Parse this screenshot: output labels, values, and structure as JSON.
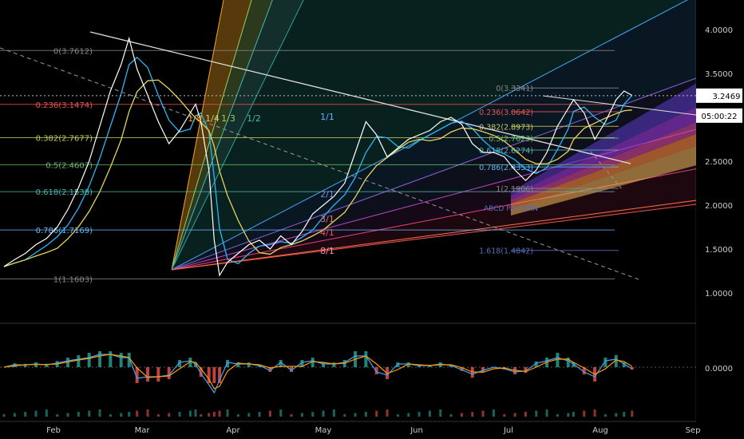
{
  "chart_data": {
    "type": "line",
    "x_axis": {
      "labels": [
        "Feb",
        "Mar",
        "Apr",
        "May",
        "Jun",
        "Jul",
        "Aug",
        "Sep"
      ],
      "range_days": [
        0,
        240
      ]
    },
    "y_axis": {
      "ticks": [
        "4.0000",
        "3.5000",
        "3.0000",
        "2.5000",
        "2.0000",
        "1.5000",
        "1.0000"
      ],
      "range": [
        0.7,
        4.35
      ]
    },
    "price_label": "3.2469",
    "countdown_label": "05:00:22",
    "macd_axis_label": "0.0000",
    "fib_left": [
      {
        "label": "0(3.7612)",
        "value": 3.7612,
        "color": "#888888"
      },
      {
        "label": "0.236(3.1474)",
        "value": 3.1474,
        "color": "#ef5350"
      },
      {
        "label": "0.382(2.7677)",
        "value": 2.7677,
        "color": "#c7c95d"
      },
      {
        "label": "0.5(2.4607)",
        "value": 2.4607,
        "color": "#66bb6a"
      },
      {
        "label": "0.618(2.1538)",
        "value": 2.1538,
        "color": "#4db6ac"
      },
      {
        "label": "0.786(1.7169)",
        "value": 1.7169,
        "color": "#64b5f6"
      },
      {
        "label": "1(1.1603)",
        "value": 1.1603,
        "color": "#888888"
      }
    ],
    "fib_right": [
      {
        "label": "0(3.3341)",
        "value": 3.3341,
        "color": "#888888"
      },
      {
        "label": "0.236(3.0642)",
        "value": 3.0642,
        "color": "#ef5350"
      },
      {
        "label": "0.382(2.8973)",
        "value": 2.8973,
        "color": "#c7c95d"
      },
      {
        "label": "0.5(2.7623)",
        "value": 2.7623,
        "color": "#66bb6a"
      },
      {
        "label": "0.618(2.6274)",
        "value": 2.6274,
        "color": "#4db6ac"
      },
      {
        "label": "0.786(2.4353)",
        "value": 2.4353,
        "color": "#64b5f6"
      },
      {
        "label": "1(2.1906)",
        "value": 2.1906,
        "color": "#888888"
      },
      {
        "label": "1.618(1.4842)",
        "value": 1.4842,
        "color": "#5c6bc0"
      }
    ],
    "gann_labels": [
      "1/8",
      "1/4",
      "1/3",
      "1/2",
      "1/1",
      "2/1",
      "3/1",
      "4/1",
      "8/1"
    ],
    "annotation": "ABCD PATTERN",
    "price_series": [
      [
        0,
        1.3
      ],
      [
        4,
        1.38
      ],
      [
        8,
        1.45
      ],
      [
        12,
        1.55
      ],
      [
        16,
        1.62
      ],
      [
        20,
        1.75
      ],
      [
        24,
        1.95
      ],
      [
        28,
        2.2
      ],
      [
        32,
        2.5
      ],
      [
        36,
        2.9
      ],
      [
        40,
        3.3
      ],
      [
        44,
        3.6
      ],
      [
        47,
        3.9
      ],
      [
        50,
        3.55
      ],
      [
        54,
        3.25
      ],
      [
        58,
        2.95
      ],
      [
        62,
        2.7
      ],
      [
        66,
        2.85
      ],
      [
        70,
        3.05
      ],
      [
        72,
        3.15
      ],
      [
        74,
        2.95
      ],
      [
        77,
        2.4
      ],
      [
        79,
        1.6
      ],
      [
        81,
        1.2
      ],
      [
        84,
        1.35
      ],
      [
        88,
        1.45
      ],
      [
        92,
        1.55
      ],
      [
        96,
        1.6
      ],
      [
        100,
        1.5
      ],
      [
        104,
        1.65
      ],
      [
        108,
        1.55
      ],
      [
        112,
        1.7
      ],
      [
        116,
        1.9
      ],
      [
        120,
        2.0
      ],
      [
        124,
        2.1
      ],
      [
        128,
        2.25
      ],
      [
        132,
        2.6
      ],
      [
        136,
        2.95
      ],
      [
        140,
        2.8
      ],
      [
        144,
        2.55
      ],
      [
        148,
        2.65
      ],
      [
        152,
        2.75
      ],
      [
        156,
        2.8
      ],
      [
        160,
        2.85
      ],
      [
        164,
        2.95
      ],
      [
        168,
        3.0
      ],
      [
        172,
        2.92
      ],
      [
        176,
        2.7
      ],
      [
        180,
        2.6
      ],
      [
        184,
        2.6
      ],
      [
        188,
        2.55
      ],
      [
        192,
        2.4
      ],
      [
        196,
        2.28
      ],
      [
        200,
        2.4
      ],
      [
        204,
        2.6
      ],
      [
        208,
        2.9
      ],
      [
        212,
        3.1
      ],
      [
        214,
        3.2
      ],
      [
        218,
        3.05
      ],
      [
        222,
        2.75
      ],
      [
        226,
        2.95
      ],
      [
        230,
        3.2
      ],
      [
        233,
        3.3
      ],
      [
        236,
        3.25
      ]
    ]
  }
}
